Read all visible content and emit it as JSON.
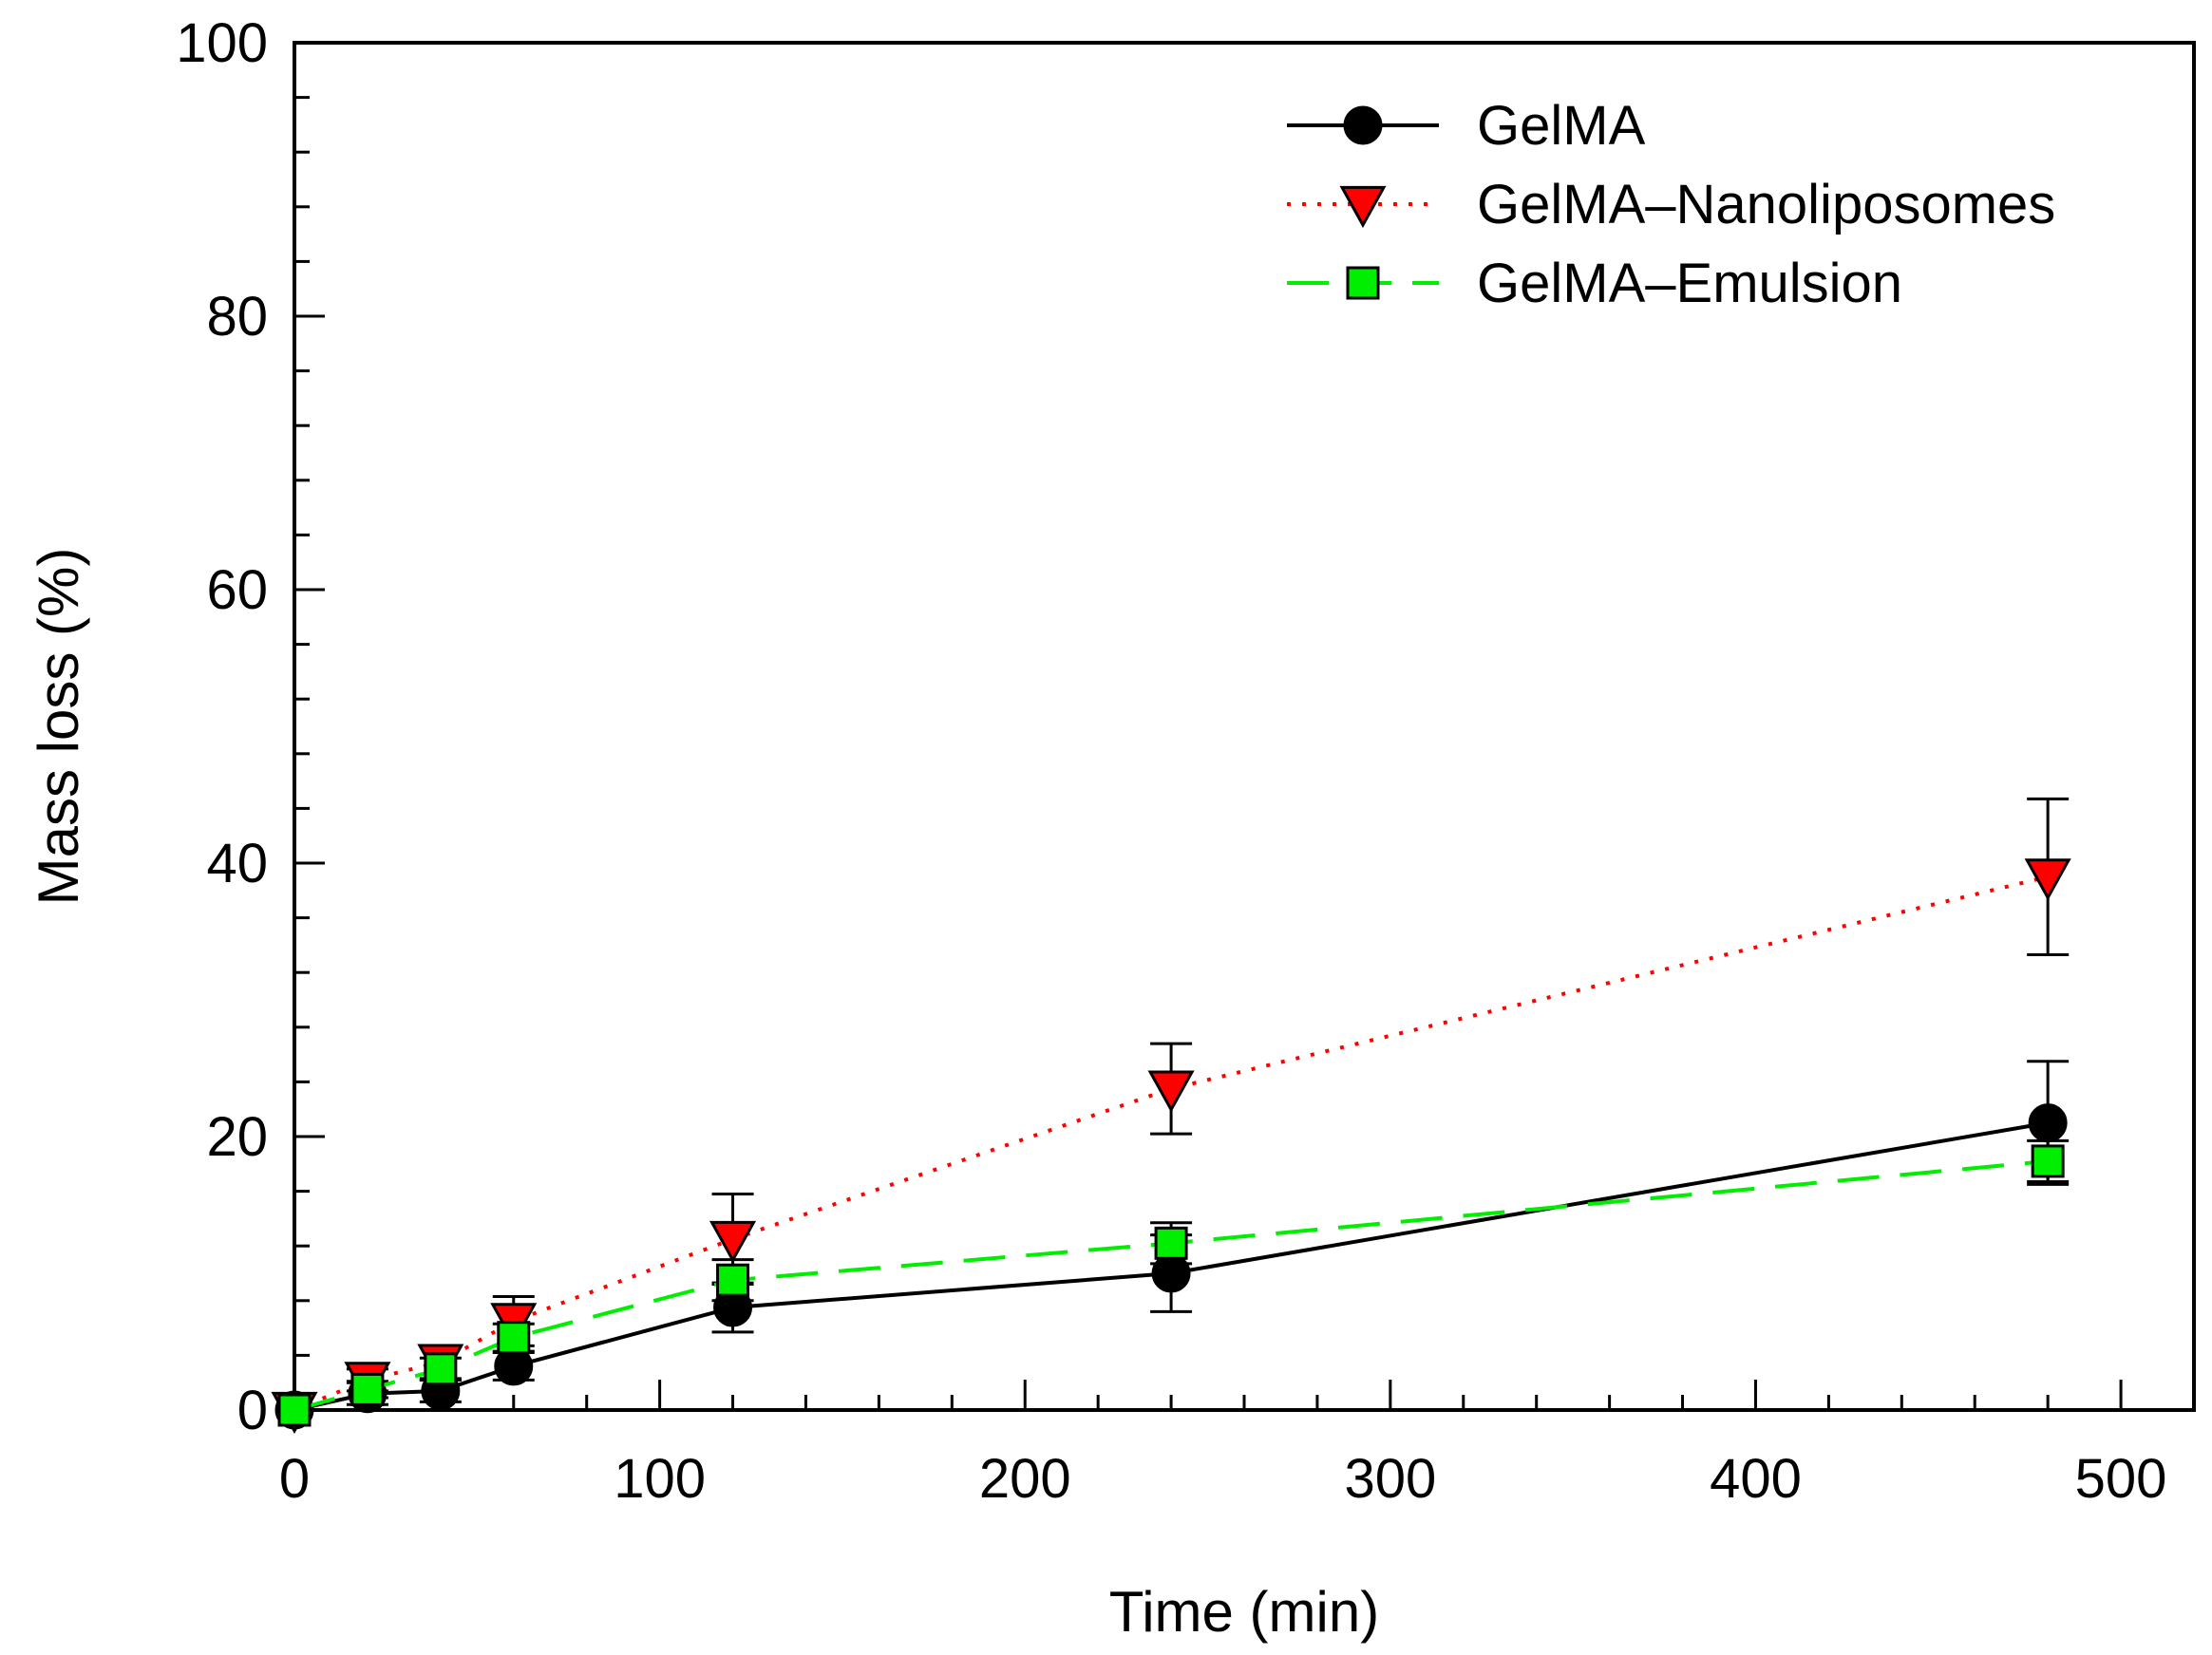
{
  "chart_data": {
    "type": "line",
    "title": "",
    "xlabel": "Time (min)",
    "ylabel": "Mass loss (%)",
    "xlim": [
      0,
      520
    ],
    "ylim": [
      0,
      100
    ],
    "xticks": [
      0,
      100,
      200,
      300,
      400,
      500
    ],
    "yticks": [
      0,
      20,
      40,
      60,
      80,
      100
    ],
    "x_minor_step": 20,
    "y_minor_step": 4,
    "grid": false,
    "legend_position": "top-right",
    "x": [
      0,
      20,
      40,
      60,
      120,
      240,
      480
    ],
    "series": [
      {
        "name": "GelMA",
        "color": "#000000",
        "marker": "circle",
        "line_style": "solid",
        "values": [
          0,
          1.2,
          1.4,
          3.2,
          7.5,
          10.0,
          21.0
        ],
        "errors": [
          0,
          0.8,
          0.8,
          1.0,
          1.8,
          2.8,
          4.5
        ]
      },
      {
        "name": "GelMA–Nanoliposomes",
        "color": "#ff0000",
        "marker": "triangle-down",
        "line_style": "dotted",
        "values": [
          0,
          2.2,
          3.5,
          6.5,
          12.5,
          23.5,
          39.0
        ],
        "errors": [
          0,
          0.8,
          1.2,
          1.8,
          3.3,
          3.3,
          5.7
        ]
      },
      {
        "name": "GelMA–Emulsion",
        "color": "#00ee00",
        "marker": "square",
        "line_style": "dashed",
        "values": [
          0,
          1.5,
          3.0,
          5.3,
          9.5,
          12.2,
          18.2
        ],
        "errors": [
          0,
          0.6,
          0.8,
          1.0,
          1.5,
          1.5,
          1.5
        ]
      }
    ]
  }
}
